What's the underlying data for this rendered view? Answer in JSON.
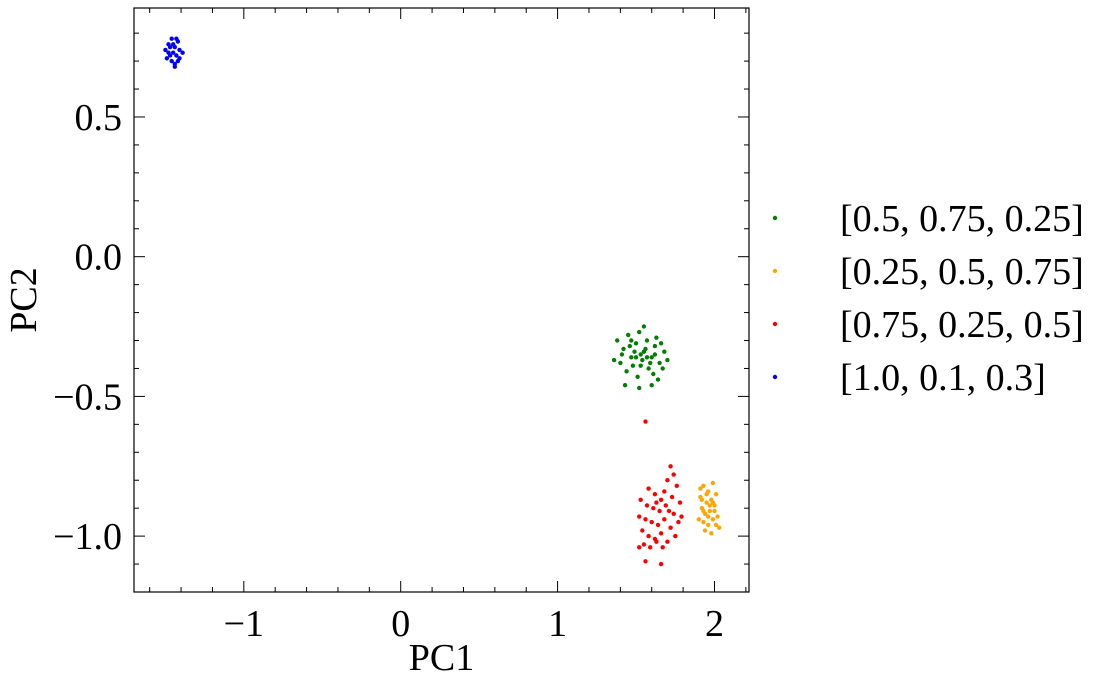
{
  "chart_data": {
    "type": "scatter",
    "title": "",
    "xlabel": "PC1",
    "ylabel": "PC2",
    "xlim": [
      -1.7,
      2.22
    ],
    "ylim": [
      -1.2,
      0.89
    ],
    "x_ticks": [
      -1,
      0,
      1,
      2
    ],
    "x_tick_labels": [
      "−1",
      "0",
      "1",
      "2"
    ],
    "y_ticks": [
      -1.0,
      -0.5,
      0.0,
      0.5
    ],
    "y_tick_labels": [
      "−1.0",
      "−0.5",
      "0.0",
      "0.5"
    ],
    "grid": false,
    "legend_position": "outside-right",
    "series": [
      {
        "name": "[0.5, 0.75, 0.25]",
        "color": "#008000",
        "points": [
          [
            1.38,
            -0.3
          ],
          [
            1.42,
            -0.33
          ],
          [
            1.45,
            -0.28
          ],
          [
            1.47,
            -0.36
          ],
          [
            1.5,
            -0.31
          ],
          [
            1.52,
            -0.27
          ],
          [
            1.55,
            -0.34
          ],
          [
            1.57,
            -0.3
          ],
          [
            1.6,
            -0.36
          ],
          [
            1.62,
            -0.32
          ],
          [
            1.65,
            -0.38
          ],
          [
            1.68,
            -0.34
          ],
          [
            1.4,
            -0.38
          ],
          [
            1.44,
            -0.41
          ],
          [
            1.48,
            -0.39
          ],
          [
            1.51,
            -0.43
          ],
          [
            1.54,
            -0.37
          ],
          [
            1.58,
            -0.4
          ],
          [
            1.61,
            -0.42
          ],
          [
            1.64,
            -0.44
          ],
          [
            1.67,
            -0.4
          ],
          [
            1.53,
            -0.35
          ],
          [
            1.56,
            -0.33
          ],
          [
            1.49,
            -0.34
          ],
          [
            1.59,
            -0.38
          ],
          [
            1.46,
            -0.32
          ],
          [
            1.63,
            -0.29
          ],
          [
            1.43,
            -0.46
          ],
          [
            1.52,
            -0.47
          ],
          [
            1.6,
            -0.46
          ],
          [
            1.36,
            -0.37
          ],
          [
            1.7,
            -0.37
          ],
          [
            1.55,
            -0.25
          ],
          [
            1.5,
            -0.36
          ],
          [
            1.57,
            -0.36
          ],
          [
            1.53,
            -0.39
          ],
          [
            1.47,
            -0.3
          ],
          [
            1.62,
            -0.35
          ],
          [
            1.41,
            -0.35
          ],
          [
            1.66,
            -0.31
          ]
        ]
      },
      {
        "name": "[0.25, 0.5, 0.75]",
        "color": "#ffa500",
        "points": [
          [
            1.93,
            -0.82
          ],
          [
            1.96,
            -0.84
          ],
          [
            1.99,
            -0.81
          ],
          [
            1.91,
            -0.86
          ],
          [
            1.95,
            -0.88
          ],
          [
            1.98,
            -0.87
          ],
          [
            2.01,
            -0.85
          ],
          [
            1.92,
            -0.9
          ],
          [
            1.94,
            -0.92
          ],
          [
            1.97,
            -0.91
          ],
          [
            2.0,
            -0.89
          ],
          [
            2.02,
            -0.93
          ],
          [
            1.9,
            -0.94
          ],
          [
            1.93,
            -0.95
          ],
          [
            1.96,
            -0.96
          ],
          [
            1.99,
            -0.94
          ],
          [
            2.03,
            -0.97
          ],
          [
            1.94,
            -0.98
          ],
          [
            1.98,
            -0.99
          ],
          [
            1.95,
            -0.85
          ],
          [
            1.97,
            -0.89
          ],
          [
            1.92,
            -0.87
          ],
          [
            2.0,
            -0.91
          ],
          [
            1.96,
            -0.93
          ],
          [
            1.93,
            -0.91
          ],
          [
            1.99,
            -0.88
          ],
          [
            1.91,
            -0.83
          ],
          [
            2.01,
            -0.96
          ]
        ]
      },
      {
        "name": "[0.75, 0.25, 0.5]",
        "color": "#ff0000",
        "points": [
          [
            1.56,
            -0.59
          ],
          [
            1.72,
            -0.75
          ],
          [
            1.74,
            -0.78
          ],
          [
            1.7,
            -0.8
          ],
          [
            1.76,
            -0.82
          ],
          [
            1.68,
            -0.84
          ],
          [
            1.58,
            -0.83
          ],
          [
            1.62,
            -0.85
          ],
          [
            1.66,
            -0.87
          ],
          [
            1.73,
            -0.86
          ],
          [
            1.78,
            -0.88
          ],
          [
            1.53,
            -0.87
          ],
          [
            1.57,
            -0.89
          ],
          [
            1.61,
            -0.9
          ],
          [
            1.65,
            -0.91
          ],
          [
            1.69,
            -0.89
          ],
          [
            1.74,
            -0.92
          ],
          [
            1.79,
            -0.93
          ],
          [
            1.52,
            -0.93
          ],
          [
            1.56,
            -0.94
          ],
          [
            1.6,
            -0.95
          ],
          [
            1.64,
            -0.96
          ],
          [
            1.68,
            -0.94
          ],
          [
            1.72,
            -0.97
          ],
          [
            1.77,
            -0.95
          ],
          [
            1.54,
            -0.98
          ],
          [
            1.58,
            -1.0
          ],
          [
            1.62,
            -1.01
          ],
          [
            1.66,
            -0.99
          ],
          [
            1.7,
            -1.02
          ],
          [
            1.75,
            -1.0
          ],
          [
            1.55,
            -1.03
          ],
          [
            1.59,
            -1.04
          ],
          [
            1.63,
            -1.02
          ],
          [
            1.67,
            -1.04
          ],
          [
            1.52,
            -1.04
          ],
          [
            1.56,
            -1.09
          ],
          [
            1.66,
            -1.1
          ],
          [
            1.71,
            -0.91
          ],
          [
            1.63,
            -0.88
          ]
        ]
      },
      {
        "name": "[1.0, 0.1, 0.3]",
        "color": "#0000ff",
        "points": [
          [
            -1.5,
            0.74
          ],
          [
            -1.48,
            0.76
          ],
          [
            -1.46,
            0.78
          ],
          [
            -1.44,
            0.75
          ],
          [
            -1.42,
            0.77
          ],
          [
            -1.47,
            0.72
          ],
          [
            -1.45,
            0.73
          ],
          [
            -1.43,
            0.72
          ],
          [
            -1.41,
            0.74
          ],
          [
            -1.49,
            0.71
          ],
          [
            -1.46,
            0.7
          ],
          [
            -1.44,
            0.69
          ],
          [
            -1.42,
            0.7
          ],
          [
            -1.39,
            0.73
          ],
          [
            -1.44,
            0.68
          ],
          [
            -1.47,
            0.75
          ],
          [
            -1.45,
            0.76
          ],
          [
            -1.43,
            0.78
          ],
          [
            -1.48,
            0.73
          ],
          [
            -1.41,
            0.71
          ]
        ]
      }
    ]
  }
}
